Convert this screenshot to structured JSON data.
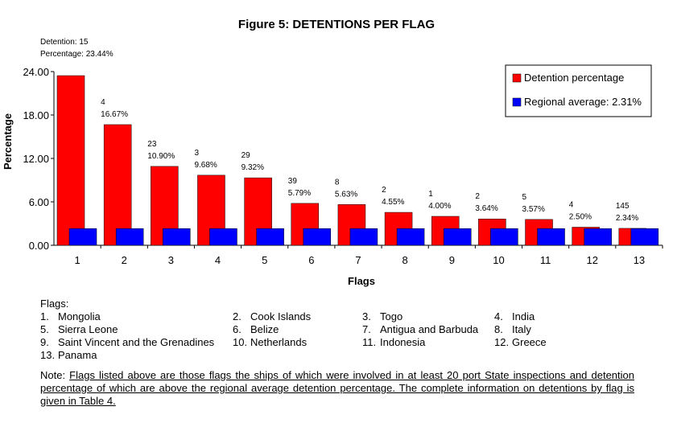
{
  "chart_data": {
    "type": "bar",
    "title": "Figure 5: DETENTIONS PER FLAG",
    "xlabel": "Flags",
    "ylabel": "Percentage",
    "ylim": [
      0,
      24
    ],
    "yticks": [
      "0.00",
      "6.00",
      "12.00",
      "18.00",
      "24.00"
    ],
    "categories": [
      "1",
      "2",
      "3",
      "4",
      "5",
      "6",
      "7",
      "8",
      "9",
      "10",
      "11",
      "12",
      "13"
    ],
    "series": [
      {
        "name": "Detention percentage",
        "color": "#ff0000",
        "values": [
          23.44,
          16.67,
          10.9,
          9.68,
          9.32,
          5.79,
          5.63,
          4.55,
          4.0,
          3.64,
          3.57,
          2.5,
          2.34
        ]
      },
      {
        "name": "Regional average: 2.31%",
        "color": "#0000ff",
        "values": [
          2.31,
          2.31,
          2.31,
          2.31,
          2.31,
          2.31,
          2.31,
          2.31,
          2.31,
          2.31,
          2.31,
          2.31,
          2.31
        ]
      }
    ],
    "detentions": [
      "15",
      "4",
      "23",
      "3",
      "29",
      "39",
      "8",
      "2",
      "1",
      "2",
      "5",
      "4",
      "145"
    ],
    "percent_labels": [
      "23.44%",
      "16.67%",
      "10.90%",
      "9.68%",
      "9.32%",
      "5.79%",
      "5.63%",
      "4.55%",
      "4.00%",
      "3.64%",
      "3.57%",
      "2.50%",
      "2.34%"
    ],
    "first_label_prefix_detention": "Detention: ",
    "first_label_prefix_percentage": "Percentage: ",
    "legend_placement": "top-right",
    "grid": false
  },
  "flags": {
    "title": "Flags:",
    "items": [
      {
        "num": "1.",
        "name": "Mongolia"
      },
      {
        "num": "2.",
        "name": "Cook Islands"
      },
      {
        "num": "3.",
        "name": "Togo"
      },
      {
        "num": "4.",
        "name": "India"
      },
      {
        "num": "5.",
        "name": "Sierra Leone"
      },
      {
        "num": "6.",
        "name": "Belize"
      },
      {
        "num": "7.",
        "name": "Antigua and Barbuda"
      },
      {
        "num": "8.",
        "name": "Italy"
      },
      {
        "num": "9.",
        "name": "Saint Vincent and the Grenadines"
      },
      {
        "num": "10.",
        "name": "Netherlands"
      },
      {
        "num": "11.",
        "name": "Indonesia"
      },
      {
        "num": "12.",
        "name": "Greece"
      },
      {
        "num": "13.",
        "name": "Panama"
      }
    ]
  },
  "note": {
    "prefix": "Note: ",
    "text": "Flags listed above are those flags the ships of which were involved in at least 20 port State inspections and detention percentage of which are above the regional average detention percentage. The complete information on detentions by flag is given in Table 4."
  }
}
